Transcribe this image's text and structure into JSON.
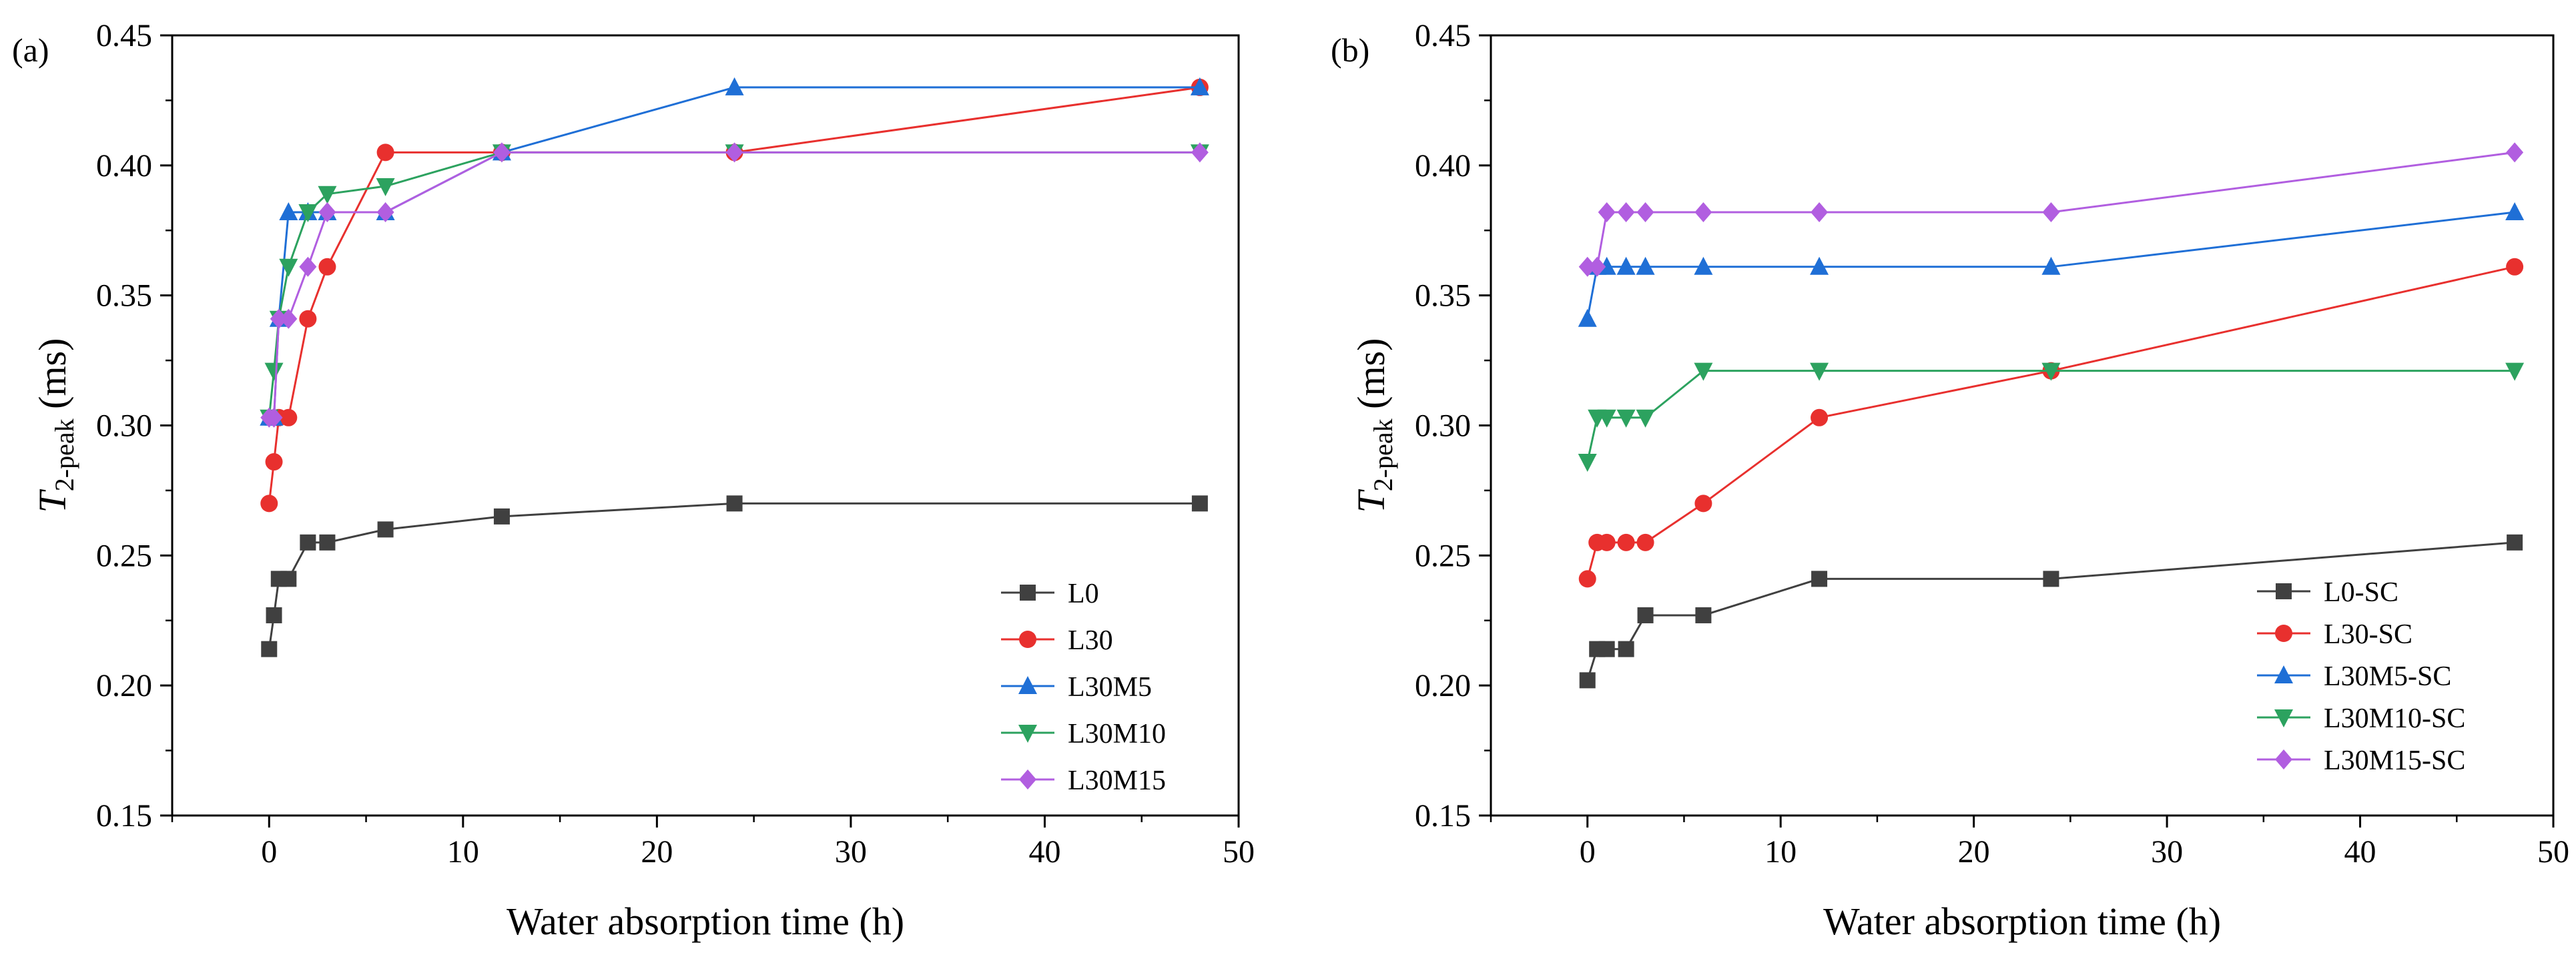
{
  "chart_data": [
    {
      "type": "line",
      "panel_label": "(a)",
      "xlabel": "Water absorption time (h)",
      "ylabel": {
        "main": "T",
        "sub": "2-peak",
        "unit": " (ms)"
      },
      "xlim": [
        -5,
        50
      ],
      "ylim": [
        0.15,
        0.45
      ],
      "xticks": [
        0,
        10,
        20,
        30,
        40,
        50
      ],
      "yticks": [
        0.15,
        0.2,
        0.25,
        0.3,
        0.35,
        0.4,
        0.45
      ],
      "ytick_labels": [
        "0.15",
        "0.20",
        "0.25",
        "0.30",
        "0.35",
        "0.40",
        "0.45"
      ],
      "legend_position": "bottom-right",
      "series": [
        {
          "name": "L0",
          "color": "#404040",
          "marker": "square",
          "x": [
            0,
            0.25,
            0.5,
            1,
            2,
            3,
            6,
            12,
            24,
            48
          ],
          "y": [
            0.214,
            0.227,
            0.241,
            0.241,
            0.255,
            0.255,
            0.26,
            0.265,
            0.27,
            0.27
          ]
        },
        {
          "name": "L30",
          "color": "#e8302e",
          "marker": "circle",
          "x": [
            0,
            0.25,
            0.5,
            1,
            2,
            3,
            6,
            12,
            24,
            48
          ],
          "y": [
            0.27,
            0.286,
            0.303,
            0.303,
            0.341,
            0.361,
            0.405,
            0.405,
            0.405,
            0.43
          ]
        },
        {
          "name": "L30M5",
          "color": "#1f6fd6",
          "marker": "triangle-up",
          "x": [
            0,
            0.25,
            0.5,
            1,
            2,
            3,
            6,
            12,
            24,
            48
          ],
          "y": [
            0.303,
            0.303,
            0.341,
            0.382,
            0.382,
            0.382,
            0.382,
            0.405,
            0.43,
            0.43
          ]
        },
        {
          "name": "L30M10",
          "color": "#2ca25f",
          "marker": "triangle-down",
          "x": [
            0,
            0.25,
            0.5,
            1,
            2,
            3,
            6,
            12,
            24,
            48
          ],
          "y": [
            0.303,
            0.321,
            0.341,
            0.361,
            0.382,
            0.389,
            0.392,
            0.405,
            0.405,
            0.405
          ]
        },
        {
          "name": "L30M15",
          "color": "#b15ee0",
          "marker": "diamond",
          "x": [
            0,
            0.25,
            0.5,
            1,
            2,
            3,
            6,
            12,
            24,
            48
          ],
          "y": [
            0.303,
            0.303,
            0.341,
            0.341,
            0.361,
            0.382,
            0.382,
            0.405,
            0.405,
            0.405
          ]
        }
      ]
    },
    {
      "type": "line",
      "panel_label": "(b)",
      "xlabel": "Water absorption time (h)",
      "ylabel": {
        "main": "T",
        "sub": "2-peak",
        "unit": " (ms)"
      },
      "xlim": [
        -5,
        50
      ],
      "ylim": [
        0.15,
        0.45
      ],
      "xticks": [
        0,
        10,
        20,
        30,
        40,
        50
      ],
      "yticks": [
        0.15,
        0.2,
        0.25,
        0.3,
        0.35,
        0.4,
        0.45
      ],
      "ytick_labels": [
        "0.15",
        "0.20",
        "0.25",
        "0.30",
        "0.35",
        "0.40",
        "0.45"
      ],
      "legend_position": "bottom-right",
      "series": [
        {
          "name": "L0-SC",
          "color": "#404040",
          "marker": "square",
          "x": [
            0,
            0.5,
            1,
            2,
            3,
            6,
            12,
            24,
            48
          ],
          "y": [
            0.202,
            0.214,
            0.214,
            0.214,
            0.227,
            0.227,
            0.241,
            0.241,
            0.255
          ]
        },
        {
          "name": "L30-SC",
          "color": "#e8302e",
          "marker": "circle",
          "x": [
            0,
            0.5,
            1,
            2,
            3,
            6,
            12,
            24,
            48
          ],
          "y": [
            0.241,
            0.255,
            0.255,
            0.255,
            0.255,
            0.27,
            0.303,
            0.321,
            0.361
          ]
        },
        {
          "name": "L30M5-SC",
          "color": "#1f6fd6",
          "marker": "triangle-up",
          "x": [
            0,
            0.5,
            1,
            2,
            3,
            6,
            12,
            24,
            48
          ],
          "y": [
            0.341,
            0.361,
            0.361,
            0.361,
            0.361,
            0.361,
            0.361,
            0.361,
            0.382
          ]
        },
        {
          "name": "L30M10-SC",
          "color": "#2ca25f",
          "marker": "triangle-down",
          "x": [
            0,
            0.5,
            1,
            2,
            3,
            6,
            12,
            24,
            48
          ],
          "y": [
            0.286,
            0.303,
            0.303,
            0.303,
            0.303,
            0.321,
            0.321,
            0.321,
            0.321
          ]
        },
        {
          "name": "L30M15-SC",
          "color": "#b15ee0",
          "marker": "diamond",
          "x": [
            0,
            0.5,
            1,
            2,
            3,
            6,
            12,
            24,
            48
          ],
          "y": [
            0.361,
            0.361,
            0.382,
            0.382,
            0.382,
            0.382,
            0.382,
            0.382,
            0.405
          ]
        }
      ]
    }
  ]
}
